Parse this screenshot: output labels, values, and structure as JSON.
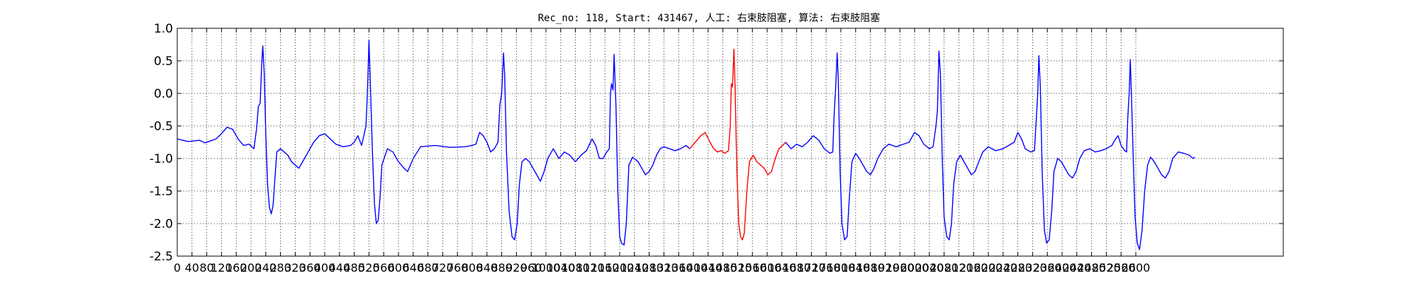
{
  "chart_data": {
    "type": "line",
    "title": "Rec_no: 118, Start: 431467, 人工: 右束肢阻塞, 算法: 右束肢阻塞",
    "xlim": [
      0,
      3000
    ],
    "ylim": [
      -2.5,
      1.0
    ],
    "y_ticks": [
      "1.0",
      "0.5",
      "0.0",
      "-0.5",
      "-1.0",
      "-1.5",
      "-2.0",
      "-2.5"
    ],
    "x_ticks": [
      "0",
      "40",
      "80",
      "120",
      "160",
      "200",
      "240",
      "280",
      "320",
      "360",
      "400",
      "440",
      "480",
      "520",
      "560",
      "600",
      "640",
      "680",
      "720",
      "760",
      "800",
      "840",
      "880",
      "920",
      "960",
      "1000",
      "1040",
      "1080",
      "1120",
      "1160",
      "1200",
      "1240",
      "1280",
      "1320",
      "1360",
      "1400",
      "1440",
      "1480",
      "1520",
      "1560",
      "1600",
      "1640",
      "1680",
      "1720",
      "1760",
      "1800",
      "1840",
      "1880",
      "1920",
      "1960",
      "2000",
      "2040",
      "2080",
      "2120",
      "2160",
      "2200",
      "2240",
      "2280",
      "2320",
      "2360",
      "2400",
      "2440",
      "2480",
      "2520",
      "2560",
      "2600"
    ],
    "grid": true,
    "highlight_color": "#ff0000",
    "series": [
      {
        "color": "#0000ff",
        "points": [
          [
            0,
            -0.7
          ],
          [
            30,
            -0.74
          ],
          [
            60,
            -0.72
          ],
          [
            75,
            -0.76
          ],
          [
            90,
            -0.73
          ],
          [
            105,
            -0.7
          ],
          [
            120,
            -0.62
          ],
          [
            135,
            -0.52
          ],
          [
            150,
            -0.55
          ],
          [
            165,
            -0.7
          ],
          [
            180,
            -0.8
          ],
          [
            195,
            -0.78
          ],
          [
            208,
            -0.85
          ],
          [
            215,
            -0.55
          ],
          [
            220,
            -0.2
          ],
          [
            225,
            -0.15
          ],
          [
            229,
            0.45
          ],
          [
            232,
            0.73
          ],
          [
            236,
            0.3
          ],
          [
            240,
            -0.6
          ],
          [
            245,
            -1.4
          ],
          [
            250,
            -1.75
          ],
          [
            255,
            -1.85
          ],
          [
            260,
            -1.72
          ],
          [
            265,
            -1.3
          ],
          [
            270,
            -0.9
          ],
          [
            280,
            -0.85
          ],
          [
            290,
            -0.9
          ],
          [
            300,
            -0.95
          ],
          [
            310,
            -1.05
          ],
          [
            320,
            -1.1
          ],
          [
            330,
            -1.15
          ],
          [
            340,
            -1.05
          ],
          [
            355,
            -0.9
          ],
          [
            370,
            -0.75
          ],
          [
            385,
            -0.65
          ],
          [
            400,
            -0.62
          ],
          [
            415,
            -0.7
          ],
          [
            430,
            -0.78
          ],
          [
            450,
            -0.82
          ],
          [
            470,
            -0.8
          ],
          [
            480,
            -0.75
          ],
          [
            490,
            -0.65
          ],
          [
            500,
            -0.8
          ],
          [
            512,
            -0.5
          ],
          [
            515,
            -0.1
          ],
          [
            518,
            0.4
          ],
          [
            520,
            0.82
          ],
          [
            524,
            0.1
          ],
          [
            530,
            -1.0
          ],
          [
            535,
            -1.7
          ],
          [
            540,
            -2.0
          ],
          [
            545,
            -1.95
          ],
          [
            550,
            -1.6
          ],
          [
            555,
            -1.1
          ],
          [
            570,
            -0.85
          ],
          [
            585,
            -0.9
          ],
          [
            600,
            -1.05
          ],
          [
            615,
            -1.15
          ],
          [
            625,
            -1.2
          ],
          [
            640,
            -1.0
          ],
          [
            660,
            -0.82
          ],
          [
            700,
            -0.8
          ],
          [
            740,
            -0.83
          ],
          [
            780,
            -0.82
          ],
          [
            800,
            -0.8
          ],
          [
            810,
            -0.78
          ],
          [
            820,
            -0.6
          ],
          [
            830,
            -0.65
          ],
          [
            840,
            -0.75
          ],
          [
            850,
            -0.9
          ],
          [
            860,
            -0.85
          ],
          [
            870,
            -0.75
          ],
          [
            875,
            -0.18
          ],
          [
            880,
            0.0
          ],
          [
            885,
            0.62
          ],
          [
            888,
            0.3
          ],
          [
            893,
            -0.9
          ],
          [
            900,
            -1.8
          ],
          [
            908,
            -2.2
          ],
          [
            915,
            -2.25
          ],
          [
            922,
            -2.0
          ],
          [
            928,
            -1.4
          ],
          [
            935,
            -1.05
          ],
          [
            945,
            -1.0
          ],
          [
            955,
            -1.05
          ],
          [
            965,
            -1.15
          ],
          [
            975,
            -1.25
          ],
          [
            985,
            -1.35
          ],
          [
            995,
            -1.2
          ],
          [
            1005,
            -1.0
          ],
          [
            1020,
            -0.85
          ],
          [
            1035,
            -1.0
          ],
          [
            1050,
            -0.9
          ],
          [
            1065,
            -0.95
          ],
          [
            1080,
            -1.05
          ],
          [
            1095,
            -0.95
          ],
          [
            1110,
            -0.88
          ],
          [
            1125,
            -0.7
          ],
          [
            1135,
            -0.8
          ],
          [
            1145,
            -1.0
          ],
          [
            1155,
            -1.0
          ],
          [
            1165,
            -0.9
          ],
          [
            1172,
            -0.85
          ],
          [
            1175,
            0.0
          ],
          [
            1178,
            0.15
          ],
          [
            1182,
            0.05
          ],
          [
            1185,
            0.6
          ],
          [
            1190,
            -0.2
          ],
          [
            1195,
            -1.5
          ],
          [
            1200,
            -2.2
          ],
          [
            1205,
            -2.3
          ],
          [
            1212,
            -2.33
          ],
          [
            1218,
            -2.0
          ],
          [
            1225,
            -1.1
          ],
          [
            1235,
            -0.98
          ],
          [
            1250,
            -1.05
          ],
          [
            1260,
            -1.15
          ],
          [
            1270,
            -1.25
          ],
          [
            1280,
            -1.2
          ],
          [
            1290,
            -1.1
          ],
          [
            1300,
            -0.95
          ],
          [
            1310,
            -0.85
          ],
          [
            1320,
            -0.82
          ],
          [
            1335,
            -0.85
          ],
          [
            1350,
            -0.88
          ],
          [
            1365,
            -0.85
          ],
          [
            1380,
            -0.8
          ],
          [
            1390,
            -0.85
          ]
        ]
      },
      {
        "color": "#ff0000",
        "points": [
          [
            1390,
            -0.85
          ],
          [
            1405,
            -0.75
          ],
          [
            1420,
            -0.65
          ],
          [
            1432,
            -0.6
          ],
          [
            1445,
            -0.75
          ],
          [
            1455,
            -0.85
          ],
          [
            1465,
            -0.9
          ],
          [
            1475,
            -0.88
          ],
          [
            1485,
            -0.92
          ],
          [
            1495,
            -0.88
          ],
          [
            1500,
            -0.5
          ],
          [
            1503,
            0.15
          ],
          [
            1506,
            0.1
          ],
          [
            1510,
            0.68
          ],
          [
            1513,
            0.1
          ],
          [
            1518,
            -1.2
          ],
          [
            1523,
            -2.0
          ],
          [
            1528,
            -2.2
          ],
          [
            1533,
            -2.25
          ],
          [
            1538,
            -2.15
          ],
          [
            1545,
            -1.5
          ],
          [
            1552,
            -1.05
          ],
          [
            1562,
            -0.95
          ],
          [
            1572,
            -1.05
          ],
          [
            1582,
            -1.1
          ],
          [
            1592,
            -1.15
          ],
          [
            1602,
            -1.25
          ],
          [
            1612,
            -1.2
          ],
          [
            1622,
            -1.0
          ],
          [
            1632,
            -0.85
          ],
          [
            1642,
            -0.8
          ],
          [
            1650,
            -0.75
          ]
        ]
      },
      {
        "color": "#0000ff",
        "points": [
          [
            1650,
            -0.75
          ],
          [
            1665,
            -0.85
          ],
          [
            1680,
            -0.78
          ],
          [
            1695,
            -0.82
          ],
          [
            1710,
            -0.75
          ],
          [
            1725,
            -0.65
          ],
          [
            1740,
            -0.72
          ],
          [
            1755,
            -0.85
          ],
          [
            1770,
            -0.92
          ],
          [
            1778,
            -0.9
          ],
          [
            1782,
            -0.3
          ],
          [
            1786,
            0.1
          ],
          [
            1790,
            0.62
          ],
          [
            1793,
            0.2
          ],
          [
            1798,
            -1.2
          ],
          [
            1803,
            -2.0
          ],
          [
            1810,
            -2.25
          ],
          [
            1817,
            -2.2
          ],
          [
            1823,
            -1.6
          ],
          [
            1830,
            -1.05
          ],
          [
            1840,
            -0.92
          ],
          [
            1850,
            -1.0
          ],
          [
            1860,
            -1.1
          ],
          [
            1870,
            -1.2
          ],
          [
            1880,
            -1.25
          ],
          [
            1890,
            -1.15
          ],
          [
            1900,
            -1.0
          ],
          [
            1915,
            -0.85
          ],
          [
            1930,
            -0.78
          ],
          [
            1950,
            -0.82
          ],
          [
            1970,
            -0.78
          ],
          [
            1985,
            -0.75
          ],
          [
            2000,
            -0.6
          ],
          [
            2012,
            -0.65
          ],
          [
            2025,
            -0.78
          ],
          [
            2040,
            -0.85
          ],
          [
            2050,
            -0.82
          ],
          [
            2058,
            -0.5
          ],
          [
            2062,
            -0.25
          ],
          [
            2066,
            0.65
          ],
          [
            2070,
            0.3
          ],
          [
            2075,
            -1.0
          ],
          [
            2080,
            -1.9
          ],
          [
            2087,
            -2.2
          ],
          [
            2094,
            -2.25
          ],
          [
            2100,
            -2.0
          ],
          [
            2106,
            -1.4
          ],
          [
            2114,
            -1.05
          ],
          [
            2124,
            -0.95
          ],
          [
            2134,
            -1.05
          ],
          [
            2144,
            -1.15
          ],
          [
            2154,
            -1.25
          ],
          [
            2164,
            -1.2
          ],
          [
            2174,
            -1.05
          ],
          [
            2185,
            -0.9
          ],
          [
            2200,
            -0.82
          ],
          [
            2220,
            -0.88
          ],
          [
            2240,
            -0.85
          ],
          [
            2255,
            -0.8
          ],
          [
            2270,
            -0.75
          ],
          [
            2280,
            -0.6
          ],
          [
            2290,
            -0.7
          ],
          [
            2300,
            -0.85
          ],
          [
            2315,
            -0.9
          ],
          [
            2325,
            -0.88
          ],
          [
            2330,
            -0.4
          ],
          [
            2334,
            0.0
          ],
          [
            2337,
            0.58
          ],
          [
            2341,
            0.1
          ],
          [
            2346,
            -1.2
          ],
          [
            2352,
            -2.1
          ],
          [
            2358,
            -2.3
          ],
          [
            2365,
            -2.25
          ],
          [
            2372,
            -1.8
          ],
          [
            2378,
            -1.2
          ],
          [
            2388,
            -1.0
          ],
          [
            2398,
            -1.05
          ],
          [
            2408,
            -1.15
          ],
          [
            2418,
            -1.25
          ],
          [
            2428,
            -1.3
          ],
          [
            2438,
            -1.2
          ],
          [
            2448,
            -1.0
          ],
          [
            2460,
            -0.88
          ],
          [
            2475,
            -0.85
          ],
          [
            2490,
            -0.9
          ],
          [
            2505,
            -0.88
          ],
          [
            2520,
            -0.85
          ],
          [
            2535,
            -0.8
          ],
          [
            2545,
            -0.7
          ],
          [
            2552,
            -0.65
          ],
          [
            2560,
            -0.8
          ],
          [
            2570,
            -0.88
          ],
          [
            2575,
            -0.9
          ],
          [
            2578,
            -0.4
          ],
          [
            2582,
            0.0
          ],
          [
            2585,
            0.52
          ],
          [
            2588,
            0.0
          ],
          [
            2593,
            -1.0
          ],
          [
            2598,
            -1.9
          ],
          [
            2604,
            -2.3
          ],
          [
            2610,
            -2.4
          ],
          [
            2617,
            -2.1
          ],
          [
            2624,
            -1.5
          ],
          [
            2632,
            -1.1
          ],
          [
            2640,
            -0.98
          ],
          [
            2650,
            -1.05
          ],
          [
            2660,
            -1.15
          ],
          [
            2670,
            -1.25
          ],
          [
            2680,
            -1.3
          ],
          [
            2690,
            -1.2
          ],
          [
            2700,
            -1.0
          ],
          [
            2715,
            -0.9
          ],
          [
            2730,
            -0.92
          ],
          [
            2745,
            -0.95
          ],
          [
            2755,
            -1.0
          ],
          [
            2760,
            -0.98
          ]
        ]
      }
    ]
  }
}
